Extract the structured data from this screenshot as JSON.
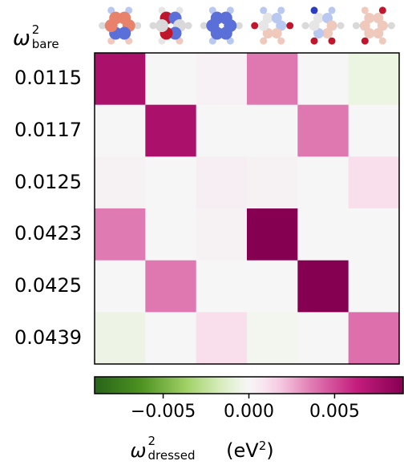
{
  "chart_data": {
    "type": "heatmap",
    "y_axis_symbol": "ω",
    "y_axis_sup": "2",
    "y_axis_sub": "bare",
    "row_labels": [
      "0.0115",
      "0.0117",
      "0.0125",
      "0.0423",
      "0.0425",
      "0.0439"
    ],
    "values": [
      [
        0.0074,
        0.0,
        0.0003,
        0.0038,
        0.0,
        -0.0006
      ],
      [
        0.0,
        0.0074,
        0.0,
        0.0,
        0.0038,
        0.0
      ],
      [
        0.0002,
        0.0,
        0.0004,
        0.0002,
        0.0,
        0.0012
      ],
      [
        0.0037,
        0.0,
        0.0002,
        0.009,
        0.0,
        0.0
      ],
      [
        0.0,
        0.0038,
        0.0,
        0.0,
        0.009,
        0.0
      ],
      [
        -0.0005,
        0.0,
        0.0012,
        -0.0002,
        0.0,
        0.004
      ]
    ],
    "colorbar": {
      "vmin": -0.009,
      "vmax": 0.009,
      "ticks": [
        -0.005,
        0.0,
        0.005
      ],
      "tick_labels": [
        "−0.005",
        "0.000",
        "0.005"
      ],
      "label_symbol": "ω",
      "label_sup": "2",
      "label_sub": "dressed",
      "label_unit_pre": " (eV",
      "label_unit_sup": "2",
      "label_unit_post": ")",
      "colormap": "PiYG-reversed (green negative, white zero, magenta positive)"
    },
    "column_headers": "molecular vibrational mode pictograms (red/blue atom displacement)"
  }
}
